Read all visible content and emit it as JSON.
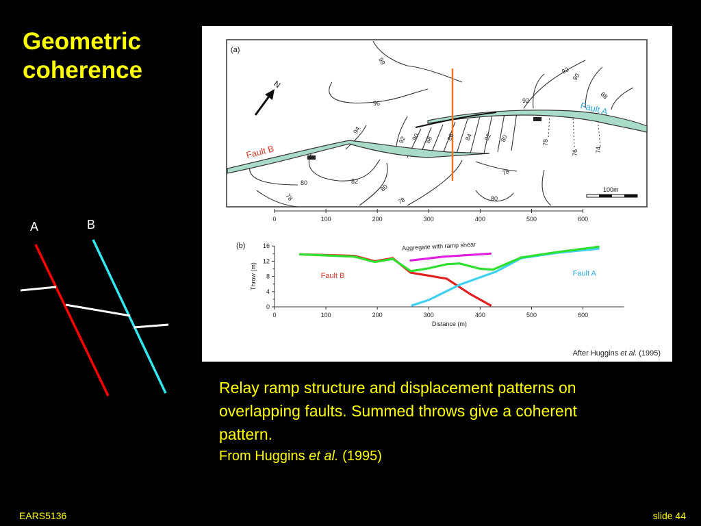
{
  "title_line1": "Geometric",
  "title_line2": "coherence",
  "left_diagram": {
    "label_a": "A",
    "label_b": "B",
    "colors": {
      "fault_a": "#ff0000",
      "fault_b": "#33e6f0",
      "marker": "#ffffff"
    }
  },
  "figure": {
    "panel_a_label": "(a)",
    "panel_b_label": "(b)",
    "north_label": "N",
    "scale_label": "100m",
    "fault_a_label": "Fault A",
    "fault_b_label": "Fault B",
    "map_x_ticks": [
      "0",
      "100",
      "200",
      "300",
      "400",
      "500",
      "600"
    ],
    "contour_labels": [
      "98",
      "96",
      "94",
      "92",
      "90",
      "88",
      "86",
      "84",
      "82",
      "80",
      "78",
      "76",
      "74",
      "92",
      "90",
      "88",
      "92",
      "82",
      "80",
      "78",
      "80",
      "78",
      "80",
      "78"
    ],
    "credit_prefix": "After Huggins ",
    "credit_etal": "et al.",
    "credit_suffix": " (1995)",
    "colors": {
      "fault_zone": "#a8dcc8",
      "fault_b_text": "#d43c2c",
      "fault_a_text": "#2aa6d6",
      "section_line": "#f07820"
    }
  },
  "chart_data": {
    "type": "line",
    "xlabel": "Distance (m)",
    "ylabel": "Throw (m)",
    "xlim": [
      0,
      680
    ],
    "ylim": [
      0,
      16
    ],
    "x_ticks": [
      "0",
      "100",
      "200",
      "300",
      "400",
      "500",
      "600"
    ],
    "y_ticks": [
      "0",
      "4",
      "8",
      "12",
      "16"
    ],
    "y_minor_ticks": [
      "2",
      "6",
      "10",
      "14"
    ],
    "annotations": {
      "aggregate": "Aggregate with ramp shear",
      "fault_b": "Fault B",
      "fault_a": "Fault A"
    },
    "series": [
      {
        "key": "fault_b",
        "color": "#e02020",
        "points": [
          [
            50,
            13.8
          ],
          [
            155,
            13.4
          ],
          [
            195,
            12.0
          ],
          [
            230,
            12.8
          ],
          [
            265,
            9.0
          ],
          [
            335,
            7.4
          ],
          [
            380,
            3.4
          ],
          [
            420,
            0.4
          ]
        ]
      },
      {
        "key": "fault_a",
        "color": "#40d0f0",
        "points": [
          [
            268,
            0.4
          ],
          [
            300,
            1.8
          ],
          [
            360,
            5.8
          ],
          [
            430,
            9.2
          ],
          [
            480,
            12.8
          ],
          [
            550,
            14.2
          ],
          [
            630,
            15.3
          ]
        ]
      },
      {
        "key": "sum",
        "color": "#30e030",
        "points": [
          [
            50,
            13.8
          ],
          [
            155,
            13.2
          ],
          [
            195,
            11.8
          ],
          [
            230,
            12.6
          ],
          [
            265,
            9.4
          ],
          [
            295,
            10.0
          ],
          [
            335,
            11.2
          ],
          [
            360,
            11.4
          ],
          [
            400,
            10.0
          ],
          [
            425,
            9.8
          ],
          [
            480,
            13.0
          ],
          [
            550,
            14.4
          ],
          [
            630,
            15.8
          ]
        ]
      },
      {
        "key": "aggregate",
        "color": "#e020e0",
        "points": [
          [
            265,
            12.2
          ],
          [
            330,
            13.2
          ],
          [
            420,
            14.0
          ]
        ]
      }
    ]
  },
  "caption": {
    "main": "Relay ramp structure and displacement patterns on overlapping faults. Summed throws give a coherent pattern.",
    "source_prefix": "From Huggins ",
    "source_etal": "et al.",
    "source_suffix": " (1995)"
  },
  "footer": {
    "left": "EARS5136",
    "right": "slide 44"
  }
}
